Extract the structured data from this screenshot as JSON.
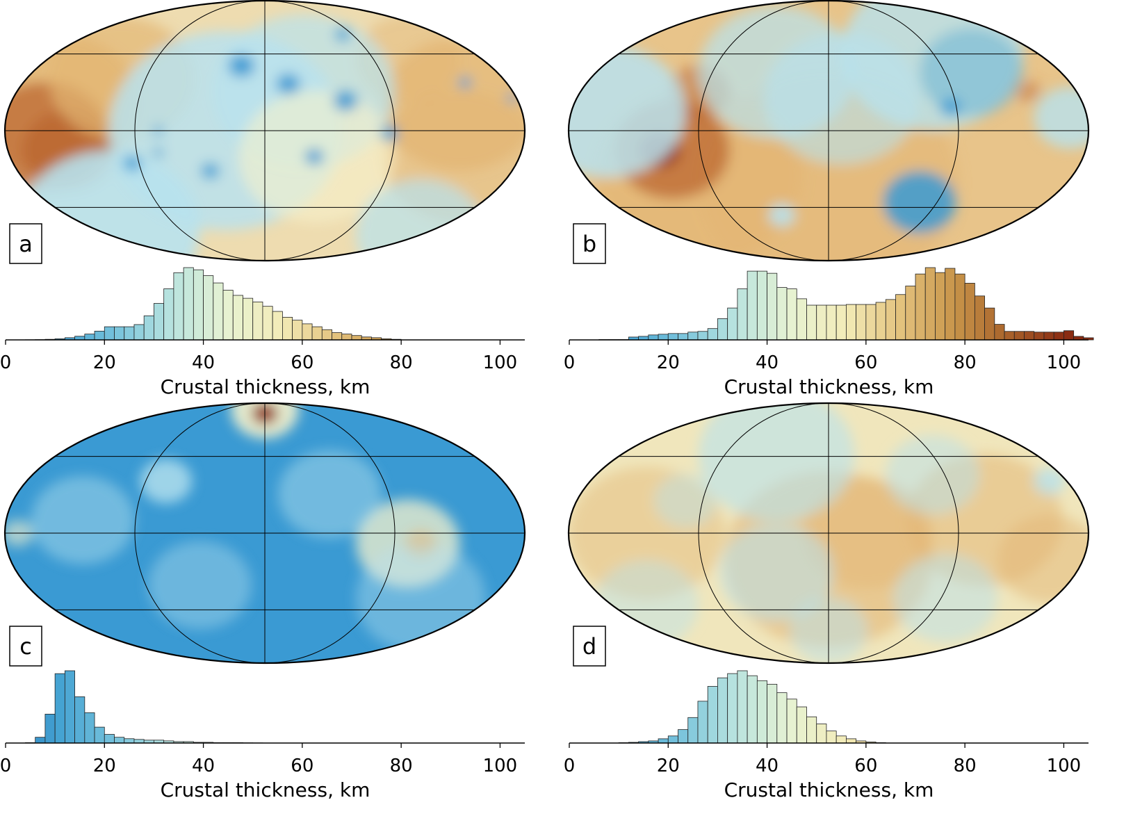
{
  "figure": {
    "colormap": [
      "#2b7fc0",
      "#45a3d2",
      "#77c3dc",
      "#b8e3df",
      "#e6f2d2",
      "#f3ecb9",
      "#e4c37f",
      "#c8954a",
      "#a8612a",
      "#8a2c12"
    ],
    "map_palette": {
      "blue": "#3a9ad3",
      "light_blue": "#b8e2ee",
      "cream": "#f6f2cc",
      "tan": "#e3b674",
      "brown": "#b8612b",
      "red": "#8e2712"
    },
    "panels": [
      {
        "id": "a",
        "label": "a",
        "base_color": "#eedcb0"
      },
      {
        "id": "b",
        "label": "b",
        "base_color": "#e8c48a"
      },
      {
        "id": "c",
        "label": "c",
        "base_color": "#3a9ad3"
      },
      {
        "id": "d",
        "label": "d",
        "base_color": "#f0e6bc"
      }
    ]
  },
  "chart_data": [
    {
      "panel": "a",
      "type": "bar",
      "title": "",
      "xlabel": "Crustal thickness, km",
      "ylabel": "",
      "xlim": [
        0,
        105
      ],
      "xticks": [
        0,
        20,
        40,
        60,
        80,
        100
      ],
      "bin_width": 2,
      "bin_starts": [
        2,
        4,
        6,
        8,
        10,
        12,
        14,
        16,
        18,
        20,
        22,
        24,
        26,
        28,
        30,
        32,
        34,
        36,
        38,
        40,
        42,
        44,
        46,
        48,
        50,
        52,
        54,
        56,
        58,
        60,
        62,
        64,
        66,
        68,
        70,
        72,
        74,
        76,
        78
      ],
      "values": [
        0.1,
        0.2,
        0.4,
        0.8,
        1.5,
        3,
        5,
        8,
        12,
        18,
        18,
        18,
        21,
        33,
        50,
        70,
        92,
        99,
        96,
        88,
        78,
        68,
        61,
        57,
        52,
        46,
        39,
        31,
        27,
        22,
        18,
        14,
        10,
        8,
        6,
        4,
        3,
        1.5,
        0.8
      ]
    },
    {
      "panel": "b",
      "type": "bar",
      "title": "",
      "xlabel": "Crustal thickness, km",
      "ylabel": "",
      "xlim": [
        0,
        105
      ],
      "xticks": [
        0,
        20,
        40,
        60,
        80,
        100
      ],
      "bin_width": 2,
      "bin_starts": [
        6,
        8,
        10,
        12,
        14,
        16,
        18,
        20,
        22,
        24,
        26,
        28,
        30,
        32,
        34,
        36,
        38,
        40,
        42,
        44,
        46,
        48,
        50,
        52,
        54,
        56,
        58,
        60,
        62,
        64,
        66,
        68,
        70,
        72,
        74,
        76,
        78,
        80,
        82,
        84,
        86,
        88,
        90,
        92,
        94,
        96,
        98,
        100,
        102,
        104
      ],
      "values": [
        0.5,
        0.5,
        0.5,
        4,
        5,
        7,
        8,
        9,
        9,
        11,
        12,
        16,
        30,
        45,
        72,
        97,
        97,
        94,
        74,
        72,
        58,
        49,
        49,
        49,
        49,
        50,
        50,
        50,
        53,
        57,
        64,
        76,
        93,
        102,
        95,
        101,
        93,
        80,
        62,
        45,
        22,
        12,
        12,
        12,
        11,
        11,
        11,
        13,
        5,
        3
      ]
    },
    {
      "panel": "c",
      "type": "bar",
      "title": "",
      "xlabel": "Crustal thickness, km",
      "ylabel": "",
      "xlim": [
        0,
        105
      ],
      "xticks": [
        0,
        20,
        40,
        60,
        80,
        100
      ],
      "bin_width": 2,
      "bin_starts": [
        4,
        6,
        8,
        10,
        12,
        14,
        16,
        18,
        20,
        22,
        24,
        26,
        28,
        30,
        32,
        34,
        36,
        38,
        40,
        42,
        44,
        46,
        48,
        50
      ],
      "values": [
        0.5,
        8,
        40,
        96,
        100,
        64,
        42,
        22,
        12,
        8,
        6,
        5,
        4,
        4,
        3,
        2,
        2,
        1,
        1,
        0.5,
        0.5,
        0.5,
        0.3,
        0.2
      ]
    },
    {
      "panel": "d",
      "type": "bar",
      "title": "",
      "xlabel": "Crustal thickness, km",
      "ylabel": "",
      "xlim": [
        0,
        105
      ],
      "xticks": [
        0,
        20,
        40,
        60,
        80,
        100
      ],
      "bin_width": 2,
      "bin_starts": [
        10,
        12,
        14,
        16,
        18,
        20,
        22,
        24,
        26,
        28,
        30,
        32,
        34,
        36,
        38,
        40,
        42,
        44,
        46,
        48,
        50,
        52,
        54,
        56,
        58,
        60,
        62
      ],
      "values": [
        0.5,
        1,
        2,
        3,
        6,
        10,
        19,
        36,
        59,
        80,
        92,
        98,
        102,
        95,
        88,
        83,
        71,
        62,
        51,
        37,
        27,
        17,
        10,
        6,
        3,
        1.5,
        0.5
      ]
    }
  ]
}
